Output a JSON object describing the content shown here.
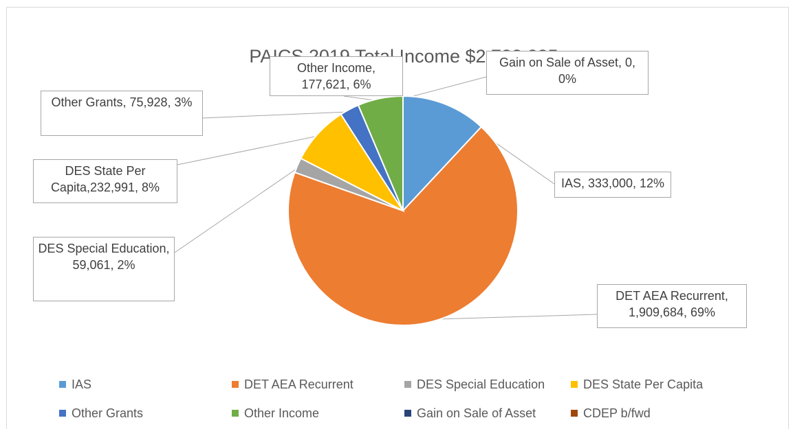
{
  "chart_data": {
    "type": "pie",
    "title": "PAICS 2019 Total Income $2,788,285",
    "slices": [
      {
        "name": "IAS",
        "value": 333000,
        "label": "IAS, 333,000, 12%",
        "color": "#5b9bd5"
      },
      {
        "name": "DET AEA Recurrent",
        "value": 1909684,
        "label": "DET AEA Recurrent, 1,909,684, 69%",
        "color": "#ed7d31"
      },
      {
        "name": "DES Special Education",
        "value": 59061,
        "label": "DES Special Education, 59,061, 2%",
        "color": "#a5a5a5"
      },
      {
        "name": "DES State Per Capita",
        "value": 232991,
        "label": "DES State Per Capita,232,991, 8%",
        "color": "#ffc000"
      },
      {
        "name": "Other Grants",
        "value": 75928,
        "label": "Other Grants, 75,928, 3%",
        "color": "#4472c4"
      },
      {
        "name": "Other Income",
        "value": 177621,
        "label": "Other Income, 177,621, 6%",
        "color": "#70ad47"
      },
      {
        "name": "Gain on Sale of Asset",
        "value": 0,
        "label": "Gain on Sale of Asset, 0, 0%",
        "color": "#264478"
      },
      {
        "name": "CDEP b/fwd",
        "value": 0,
        "label": "",
        "color": "#9e480e"
      }
    ],
    "legend_position": "bottom"
  }
}
